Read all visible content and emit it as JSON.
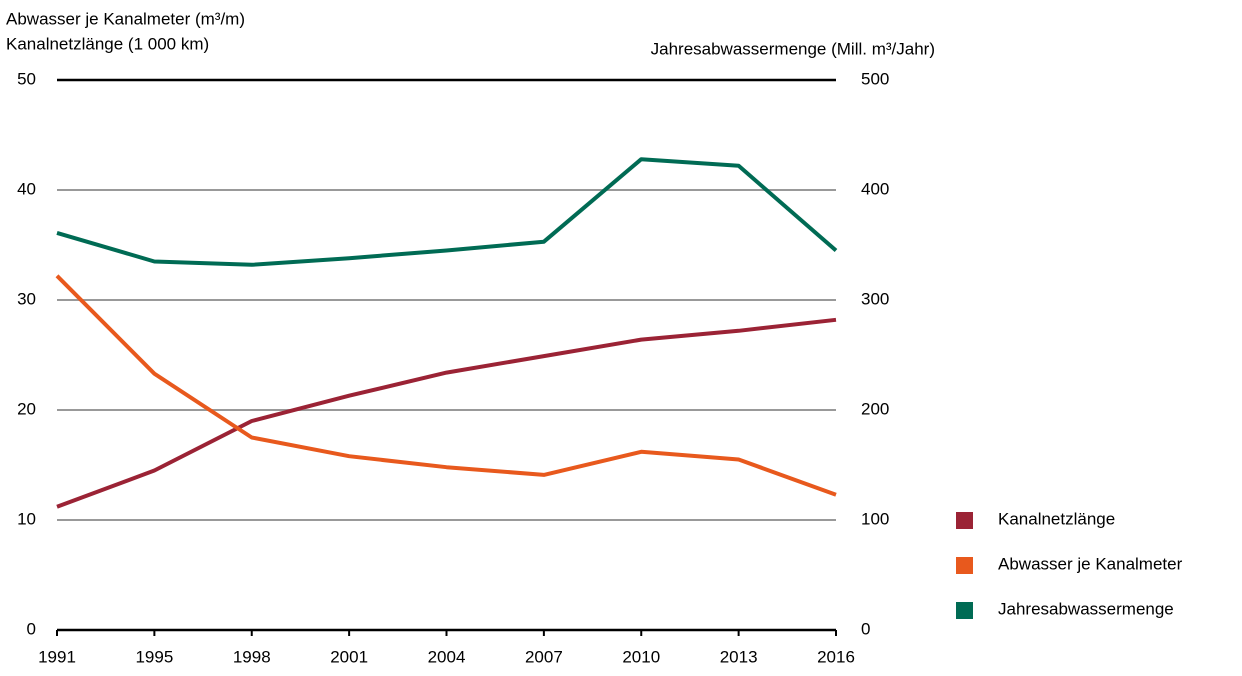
{
  "chart_data": {
    "type": "line",
    "ylabel": [
      "Abwasser je Kanalmeter (m³/m)",
      "Kanalnetzlänge (1 000 km)"
    ],
    "y2label": "Jahresabwassermenge (Mill. m³/Jahr)",
    "categories": [
      "1991",
      "1995",
      "1998",
      "2001",
      "2004",
      "2007",
      "2010",
      "2013",
      "2016"
    ],
    "series": [
      {
        "name": "Kanalnetzlänge",
        "color": "#9b2335",
        "values": [
          11.2,
          14.5,
          19.0,
          21.3,
          23.4,
          24.9,
          26.4,
          27.2,
          28.2
        ]
      },
      {
        "name": "Abwasser je Kanalmeter",
        "color": "#e8591d",
        "values": [
          32.2,
          23.3,
          17.5,
          15.8,
          14.8,
          14.1,
          16.2,
          15.5,
          12.3
        ]
      },
      {
        "name": "Jahresabwassermenge",
        "color": "#006b54",
        "axis": "y2",
        "values": [
          361,
          335,
          332,
          338,
          345,
          353,
          428,
          422,
          345
        ]
      }
    ],
    "ylim": [
      0,
      50
    ],
    "yticks": [
      0,
      10,
      20,
      30,
      40,
      50
    ],
    "y2lim": [
      0,
      500
    ],
    "y2ticks": [
      0,
      100,
      200,
      300,
      400,
      500
    ],
    "grid": true
  }
}
